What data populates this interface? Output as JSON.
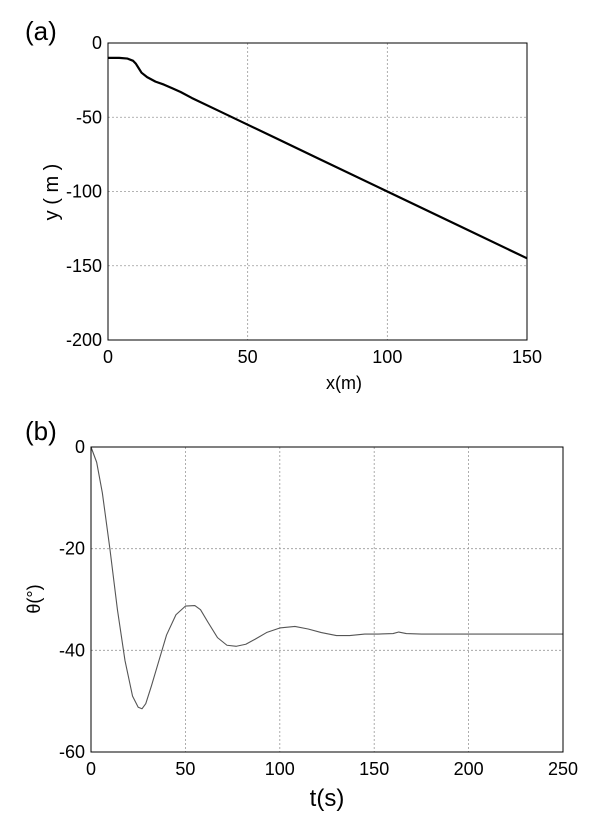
{
  "chart_data": [
    {
      "type": "line",
      "panel_label": "(a)",
      "title": "",
      "xlabel": "x(m)",
      "ylabel": "y ( m )",
      "xlim": [
        0,
        150
      ],
      "ylim": [
        -200,
        0
      ],
      "xticks": [
        0,
        50,
        100,
        150
      ],
      "yticks": [
        0,
        -50,
        -100,
        -150,
        -200
      ],
      "xtick_labels": [
        "0",
        "50",
        "100",
        "150"
      ],
      "ytick_labels": [
        "0",
        "-50",
        "-100",
        "-150",
        "-200"
      ],
      "grid": true,
      "series": [
        {
          "color": "#000000",
          "x": [
            0,
            4,
            7,
            9,
            10,
            11,
            12,
            14,
            17,
            20,
            23,
            26,
            30,
            40,
            50,
            60,
            75,
            100,
            125,
            150
          ],
          "y": [
            -10,
            -10,
            -10.5,
            -12,
            -14,
            -17,
            -20,
            -23,
            -26,
            -28,
            -30.5,
            -33,
            -37,
            -46,
            -55,
            -64,
            -77.5,
            -100,
            -122.5,
            -145
          ]
        }
      ]
    },
    {
      "type": "line",
      "panel_label": "(b)",
      "title": "",
      "xlabel": "t(s)",
      "ylabel": "θ(°)",
      "xlim": [
        0,
        250
      ],
      "ylim": [
        -60,
        0
      ],
      "xticks": [
        0,
        50,
        100,
        150,
        200,
        250
      ],
      "yticks": [
        0,
        -20,
        -40,
        -60
      ],
      "xtick_labels": [
        "0",
        "50",
        "100",
        "150",
        "200",
        "250"
      ],
      "ytick_labels": [
        "0",
        "-20",
        "-40",
        "-60"
      ],
      "grid": true,
      "series": [
        {
          "color": "#555555",
          "x": [
            0,
            3,
            6,
            10,
            14,
            18,
            22,
            25,
            27,
            29,
            32,
            36,
            40,
            45,
            50,
            55,
            58,
            62,
            67,
            72,
            77,
            82,
            87,
            93,
            100,
            108,
            115,
            122,
            130,
            137,
            145,
            152,
            160,
            163,
            167,
            175,
            185,
            200,
            215,
            230,
            250
          ],
          "y": [
            0,
            -3,
            -9,
            -20,
            -32,
            -42,
            -49,
            -51.2,
            -51.5,
            -50.5,
            -47,
            -42,
            -37,
            -33,
            -31.3,
            -31.2,
            -32,
            -34.5,
            -37.5,
            -39,
            -39.2,
            -38.8,
            -37.8,
            -36.5,
            -35.6,
            -35.3,
            -35.8,
            -36.5,
            -37.1,
            -37.1,
            -36.8,
            -36.8,
            -36.7,
            -36.4,
            -36.7,
            -36.8,
            -36.8,
            -36.8,
            -36.8,
            -36.8,
            -36.8
          ]
        }
      ]
    }
  ]
}
